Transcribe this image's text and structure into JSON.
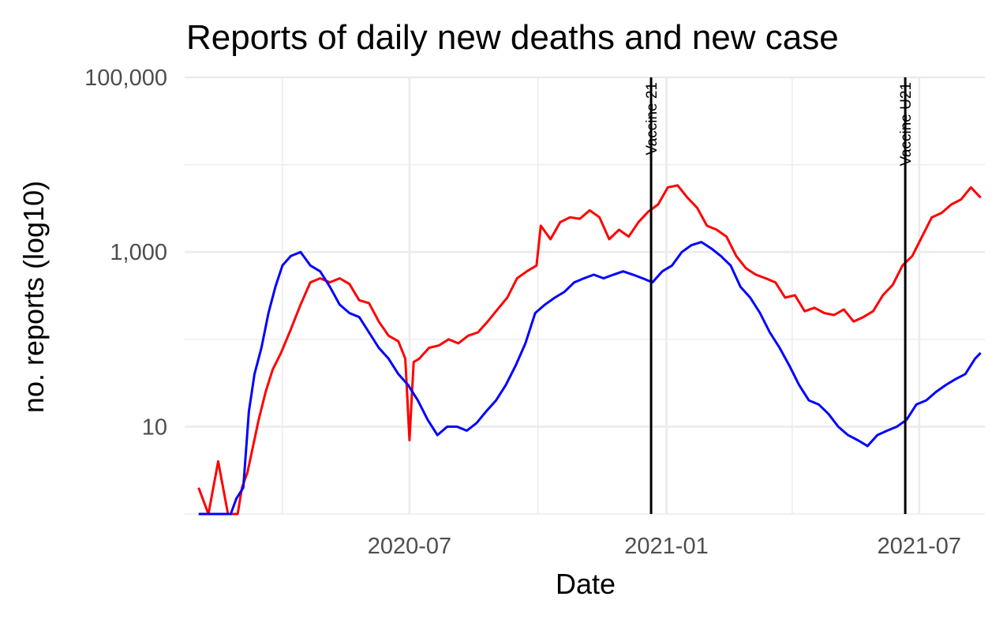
{
  "chart_data": {
    "type": "line",
    "title": "Reports of daily new deaths and new case",
    "xlabel": "Date",
    "ylabel": "no. reports (log10)",
    "y_scale": "log10",
    "ylim": [
      1,
      100000
    ],
    "xlim": [
      "2020-01-22",
      "2021-08-17"
    ],
    "x_ticks": [
      "2020-07-01",
      "2021-01-01",
      "2021-07-01"
    ],
    "x_tick_labels": [
      "2020-07",
      "2021-01",
      "2021-07"
    ],
    "y_ticks": [
      10,
      1000,
      100000
    ],
    "y_tick_labels": [
      "10",
      "1,000",
      "100,000"
    ],
    "grid": true,
    "legend": "none",
    "vlines": [
      {
        "date": "2020-12-21",
        "label": "Vaccine 21"
      },
      {
        "date": "2021-06-21",
        "label": "Vaccine U21"
      }
    ],
    "series": [
      {
        "color": "#ff0000",
        "x": [
          "2020-02-01",
          "2020-02-08",
          "2020-02-15",
          "2020-02-22",
          "2020-02-29",
          "2020-03-03",
          "2020-03-07",
          "2020-03-11",
          "2020-03-15",
          "2020-03-20",
          "2020-03-25",
          "2020-03-31",
          "2020-04-07",
          "2020-04-14",
          "2020-04-21",
          "2020-04-28",
          "2020-05-05",
          "2020-05-12",
          "2020-05-19",
          "2020-05-26",
          "2020-06-02",
          "2020-06-09",
          "2020-06-16",
          "2020-06-23",
          "2020-06-28",
          "2020-07-01",
          "2020-07-04",
          "2020-07-08",
          "2020-07-15",
          "2020-07-22",
          "2020-07-29",
          "2020-08-05",
          "2020-08-12",
          "2020-08-19",
          "2020-08-26",
          "2020-09-02",
          "2020-09-09",
          "2020-09-16",
          "2020-09-23",
          "2020-09-30",
          "2020-10-03",
          "2020-10-10",
          "2020-10-17",
          "2020-10-24",
          "2020-10-31",
          "2020-11-07",
          "2020-11-14",
          "2020-11-21",
          "2020-11-28",
          "2020-12-05",
          "2020-12-12",
          "2020-12-19",
          "2020-12-26",
          "2021-01-02",
          "2021-01-09",
          "2021-01-16",
          "2021-01-23",
          "2021-01-30",
          "2021-02-06",
          "2021-02-13",
          "2021-02-20",
          "2021-02-27",
          "2021-03-06",
          "2021-03-13",
          "2021-03-20",
          "2021-03-27",
          "2021-04-03",
          "2021-04-10",
          "2021-04-17",
          "2021-04-24",
          "2021-05-01",
          "2021-05-08",
          "2021-05-15",
          "2021-05-22",
          "2021-05-29",
          "2021-06-05",
          "2021-06-12",
          "2021-06-19",
          "2021-06-26",
          "2021-07-03",
          "2021-07-10",
          "2021-07-17",
          "2021-07-24",
          "2021-07-31",
          "2021-08-07",
          "2021-08-14"
        ],
        "y": [
          2,
          1,
          4,
          1,
          1,
          2,
          3,
          6,
          12,
          25,
          45,
          70,
          130,
          250,
          450,
          500,
          450,
          500,
          430,
          280,
          260,
          160,
          110,
          95,
          60,
          7,
          55,
          60,
          80,
          85,
          100,
          90,
          110,
          120,
          160,
          220,
          300,
          500,
          600,
          700,
          2000,
          1400,
          2200,
          2500,
          2400,
          3000,
          2500,
          1400,
          1800,
          1500,
          2200,
          2900,
          3500,
          5500,
          5800,
          4200,
          3200,
          2000,
          1800,
          1500,
          900,
          650,
          550,
          500,
          450,
          300,
          320,
          210,
          230,
          200,
          190,
          220,
          160,
          180,
          210,
          320,
          420,
          700,
          900,
          1500,
          2500,
          2800,
          3500,
          4000,
          5500,
          4200
        ]
      },
      {
        "color": "#0000ff",
        "x": [
          "2020-02-01",
          "2020-02-24",
          "2020-02-28",
          "2020-03-04",
          "2020-03-08",
          "2020-03-12",
          "2020-03-17",
          "2020-03-22",
          "2020-03-27",
          "2020-04-01",
          "2020-04-07",
          "2020-04-14",
          "2020-04-21",
          "2020-04-28",
          "2020-05-05",
          "2020-05-12",
          "2020-05-19",
          "2020-05-26",
          "2020-06-02",
          "2020-06-09",
          "2020-06-16",
          "2020-06-23",
          "2020-06-30",
          "2020-07-07",
          "2020-07-14",
          "2020-07-21",
          "2020-07-28",
          "2020-08-04",
          "2020-08-11",
          "2020-08-18",
          "2020-08-25",
          "2020-09-01",
          "2020-09-08",
          "2020-09-15",
          "2020-09-22",
          "2020-09-29",
          "2020-10-06",
          "2020-10-13",
          "2020-10-20",
          "2020-10-27",
          "2020-11-03",
          "2020-11-10",
          "2020-11-17",
          "2020-11-24",
          "2020-12-01",
          "2020-12-08",
          "2020-12-15",
          "2020-12-22",
          "2020-12-29",
          "2021-01-05",
          "2021-01-12",
          "2021-01-19",
          "2021-01-26",
          "2021-02-02",
          "2021-02-09",
          "2021-02-16",
          "2021-02-23",
          "2021-03-02",
          "2021-03-09",
          "2021-03-16",
          "2021-03-23",
          "2021-03-30",
          "2021-04-06",
          "2021-04-13",
          "2021-04-20",
          "2021-04-27",
          "2021-05-04",
          "2021-05-11",
          "2021-05-18",
          "2021-05-25",
          "2021-06-01",
          "2021-06-08",
          "2021-06-15",
          "2021-06-22",
          "2021-06-29",
          "2021-07-06",
          "2021-07-13",
          "2021-07-20",
          "2021-07-27",
          "2021-08-03",
          "2021-08-10",
          "2021-08-14"
        ],
        "y": [
          1,
          1,
          1.5,
          2,
          15,
          40,
          80,
          200,
          400,
          700,
          900,
          1000,
          700,
          600,
          400,
          250,
          200,
          180,
          120,
          80,
          60,
          40,
          30,
          20,
          12,
          8,
          10,
          10,
          9,
          11,
          15,
          20,
          30,
          50,
          90,
          200,
          250,
          300,
          350,
          450,
          500,
          550,
          500,
          550,
          600,
          550,
          500,
          450,
          600,
          700,
          1000,
          1200,
          1300,
          1100,
          900,
          700,
          400,
          300,
          200,
          120,
          80,
          50,
          30,
          20,
          18,
          14,
          10,
          8,
          7,
          6,
          8,
          9,
          10,
          12,
          18,
          20,
          25,
          30,
          35,
          40,
          60,
          70
        ]
      }
    ]
  }
}
